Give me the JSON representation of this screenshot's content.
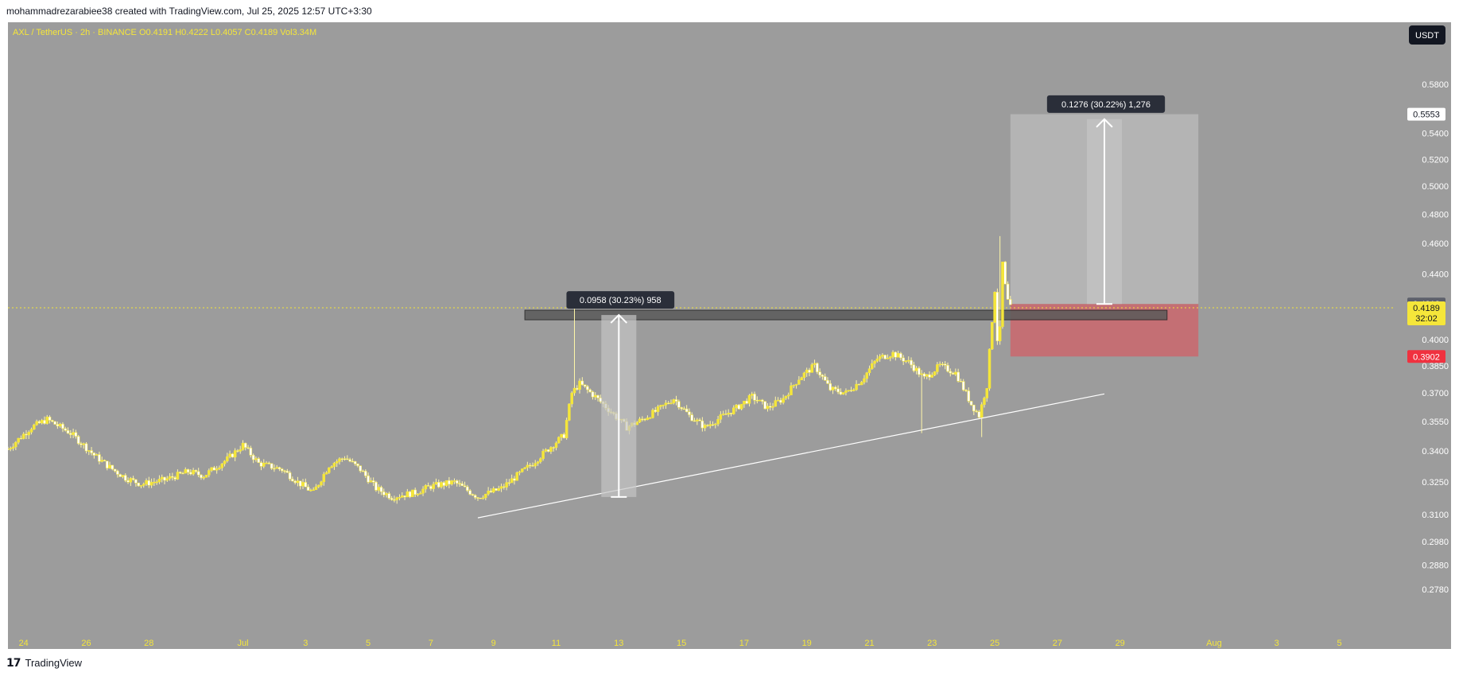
{
  "header": {
    "attribution": "mohammadrezarabiee38 created with TradingView.com, Jul 25, 2025 12:57 UTC+3:30"
  },
  "footer": {
    "brand": "TradingView",
    "logo_icon": "tradingview-logo-icon"
  },
  "colors": {
    "background": "#9c9c9c",
    "candle": "#f5e63a",
    "candle_wick": "#fff7a8",
    "axis_text": "#f5e63a",
    "price_scale_text": "#ffffff",
    "target_zone": "#b9b9b9",
    "stop_zone": "#c96a70",
    "resistance_box": "#5a5a5a",
    "trendline": "#ffffff",
    "current_price_bg": "#f5e63a",
    "stop_label_bg": "#f0313f"
  },
  "chart_data": {
    "type": "candlestick",
    "title": "AXL / TetherUS · 2h · BINANCE",
    "ohlcv_legend": {
      "symbol": "AXL / TetherUS · 2h · BINANCE",
      "open": "O0.4191",
      "high": "H0.4222",
      "low": "L0.4057",
      "close": "C0.4189",
      "volume": "Vol3.34M"
    },
    "currency_label": "USDT",
    "ylim": [
      0.27,
      0.6
    ],
    "y_scale": "log",
    "y_ticks": [
      "0.5800",
      "0.5400",
      "0.5200",
      "0.5000",
      "0.4800",
      "0.4600",
      "0.4400",
      "0.4000",
      "0.3850",
      "0.3700",
      "0.3550",
      "0.3400",
      "0.3250",
      "0.3100",
      "0.2980",
      "0.2880",
      "0.2780"
    ],
    "y_tick_values": [
      0.58,
      0.54,
      0.52,
      0.5,
      0.48,
      0.46,
      0.44,
      0.4,
      0.385,
      0.37,
      0.355,
      0.34,
      0.325,
      0.31,
      0.298,
      0.288,
      0.278
    ],
    "x_ticks": [
      "24",
      "26",
      "28",
      "Jul",
      "3",
      "5",
      "7",
      "9",
      "11",
      "13",
      "15",
      "17",
      "19",
      "21",
      "23",
      "25",
      "27",
      "29",
      "Aug",
      "3",
      "5"
    ],
    "x_tick_dates": [
      "2025-06-24",
      "2025-06-26",
      "2025-06-28",
      "2025-07-01",
      "2025-07-03",
      "2025-07-05",
      "2025-07-07",
      "2025-07-09",
      "2025-07-11",
      "2025-07-13",
      "2025-07-15",
      "2025-07-17",
      "2025-07-19",
      "2025-07-21",
      "2025-07-23",
      "2025-07-25",
      "2025-07-27",
      "2025-07-29",
      "2025-08-01",
      "2025-08-03",
      "2025-08-05"
    ],
    "price_path": [
      [
        "2025-06-23T12:00",
        0.341
      ],
      [
        "2025-06-24T06:00",
        0.352
      ],
      [
        "2025-06-24T18:00",
        0.356
      ],
      [
        "2025-06-25T12:00",
        0.349
      ],
      [
        "2025-06-26T06:00",
        0.338
      ],
      [
        "2025-06-26T18:00",
        0.332
      ],
      [
        "2025-06-27T06:00",
        0.327
      ],
      [
        "2025-06-27T18:00",
        0.324
      ],
      [
        "2025-06-28T12:00",
        0.326
      ],
      [
        "2025-06-29T06:00",
        0.33
      ],
      [
        "2025-06-29T18:00",
        0.328
      ],
      [
        "2025-06-30T12:00",
        0.336
      ],
      [
        "2025-07-01T00:00",
        0.343
      ],
      [
        "2025-07-01T12:00",
        0.334
      ],
      [
        "2025-07-02T06:00",
        0.331
      ],
      [
        "2025-07-02T18:00",
        0.325
      ],
      [
        "2025-07-03T06:00",
        0.32
      ],
      [
        "2025-07-03T18:00",
        0.333
      ],
      [
        "2025-07-04T06:00",
        0.337
      ],
      [
        "2025-07-04T18:00",
        0.331
      ],
      [
        "2025-07-05T06:00",
        0.322
      ],
      [
        "2025-07-05T18:00",
        0.318
      ],
      [
        "2025-07-06T12:00",
        0.32
      ],
      [
        "2025-07-07T00:00",
        0.323
      ],
      [
        "2025-07-07T18:00",
        0.325
      ],
      [
        "2025-07-08T12:00",
        0.318
      ],
      [
        "2025-07-09T06:00",
        0.322
      ],
      [
        "2025-07-09T18:00",
        0.328
      ],
      [
        "2025-07-10T06:00",
        0.334
      ],
      [
        "2025-07-10T18:00",
        0.341
      ],
      [
        "2025-07-11T06:00",
        0.348
      ],
      [
        "2025-07-11T12:00",
        0.37
      ],
      [
        "2025-07-11T18:00",
        0.375
      ],
      [
        "2025-07-12T06:00",
        0.368
      ],
      [
        "2025-07-12T18:00",
        0.36
      ],
      [
        "2025-07-13T06:00",
        0.352
      ],
      [
        "2025-07-13T18:00",
        0.356
      ],
      [
        "2025-07-14T06:00",
        0.361
      ],
      [
        "2025-07-14T18:00",
        0.367
      ],
      [
        "2025-07-15T06:00",
        0.358
      ],
      [
        "2025-07-15T18:00",
        0.352
      ],
      [
        "2025-07-16T06:00",
        0.357
      ],
      [
        "2025-07-16T18:00",
        0.362
      ],
      [
        "2025-07-17T06:00",
        0.368
      ],
      [
        "2025-07-17T18:00",
        0.362
      ],
      [
        "2025-07-18T06:00",
        0.367
      ],
      [
        "2025-07-18T18:00",
        0.378
      ],
      [
        "2025-07-19T06:00",
        0.385
      ],
      [
        "2025-07-19T18:00",
        0.372
      ],
      [
        "2025-07-20T06:00",
        0.37
      ],
      [
        "2025-07-20T18:00",
        0.377
      ],
      [
        "2025-07-21T06:00",
        0.389
      ],
      [
        "2025-07-21T18:00",
        0.392
      ],
      [
        "2025-07-22T06:00",
        0.387
      ],
      [
        "2025-07-22T18:00",
        0.378
      ],
      [
        "2025-07-23T06:00",
        0.385
      ],
      [
        "2025-07-23T18:00",
        0.381
      ],
      [
        "2025-07-24T06:00",
        0.364
      ],
      [
        "2025-07-24T12:00",
        0.358
      ],
      [
        "2025-07-24T18:00",
        0.374
      ],
      [
        "2025-07-25T00:00",
        0.43
      ],
      [
        "2025-07-25T03:00",
        0.385
      ],
      [
        "2025-07-25T06:00",
        0.447
      ],
      [
        "2025-07-25T09:00",
        0.425
      ],
      [
        "2025-07-25T12:00",
        0.4189
      ]
    ],
    "annotations": {
      "measure_left": "0.0958 (30.23%) 958",
      "measure_right": "0.1276 (30.22%) 1,276"
    },
    "price_labels": {
      "target": "0.5553",
      "prev": "0.4212",
      "current": "0.4189",
      "countdown": "32:02",
      "stop": "0.3902"
    },
    "levels": {
      "resistance": 0.4145,
      "entry": 0.4212,
      "target": 0.5553,
      "stop": 0.3902,
      "current": 0.4189
    },
    "grid": false
  }
}
